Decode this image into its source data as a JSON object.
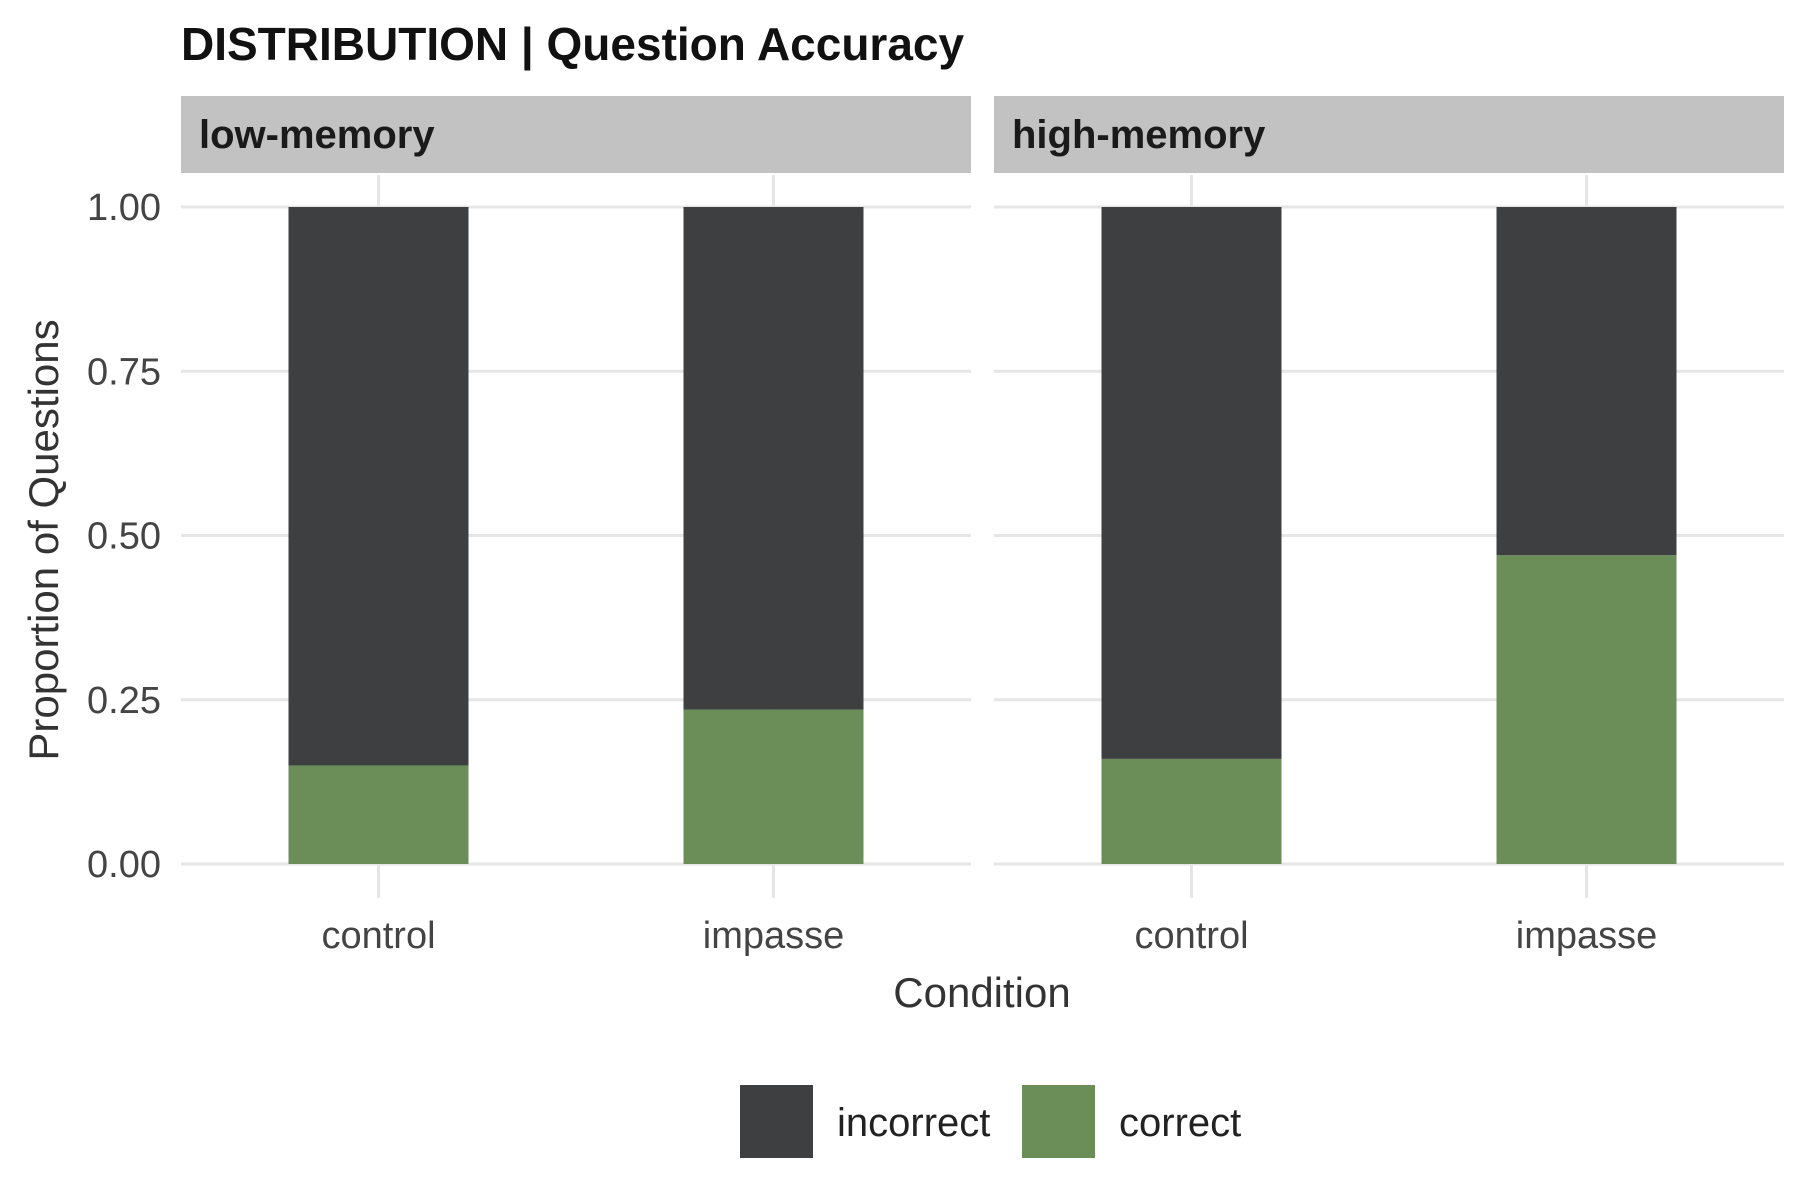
{
  "chart_data": {
    "type": "bar",
    "stacked": true,
    "title": "DISTRIBUTION | Question Accuracy",
    "xlabel": "Condition",
    "ylabel": "Proportion of Questions",
    "ylim": [
      0,
      1
    ],
    "yticks": [
      "0.00",
      "0.25",
      "0.50",
      "0.75",
      "1.00"
    ],
    "grid": true,
    "legend_position": "bottom",
    "colors": {
      "incorrect": "#3e3f41",
      "correct": "#6b8e59",
      "strip": "#c2c2c2",
      "grid": "#e6e6e6"
    },
    "facets": [
      {
        "label": "low-memory",
        "categories": [
          "control",
          "impasse"
        ],
        "series": [
          {
            "name": "incorrect",
            "values": [
              0.85,
              0.765
            ]
          },
          {
            "name": "correct",
            "values": [
              0.15,
              0.235
            ]
          }
        ]
      },
      {
        "label": "high-memory",
        "categories": [
          "control",
          "impasse"
        ],
        "series": [
          {
            "name": "incorrect",
            "values": [
              0.84,
              0.53
            ]
          },
          {
            "name": "correct",
            "values": [
              0.16,
              0.47
            ]
          }
        ]
      }
    ],
    "legend": [
      "incorrect",
      "correct"
    ]
  }
}
